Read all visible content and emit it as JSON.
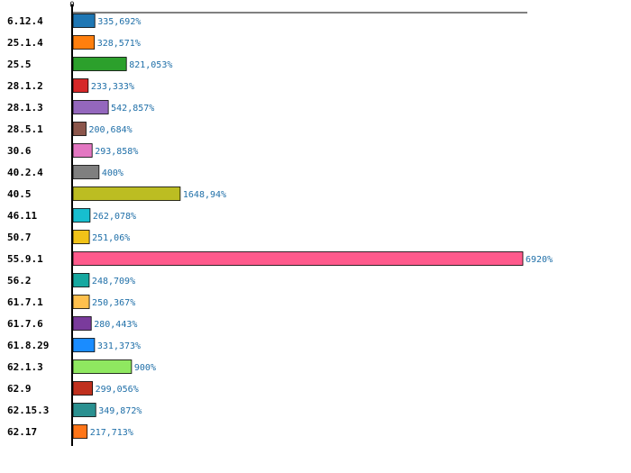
{
  "chart_data": {
    "type": "bar",
    "orientation": "horizontal",
    "title": "",
    "xlabel": "",
    "ylabel": "",
    "xlim": [
      0,
      7000
    ],
    "x_ticks": [
      "0"
    ],
    "grid": false,
    "legend": "none",
    "categories": [
      "6.12.4",
      "25.1.4",
      "25.5",
      "28.1.2",
      "28.1.3",
      "28.5.1",
      "30.6",
      "40.2.4",
      "40.5",
      "46.11",
      "50.7",
      "55.9.1",
      "56.2",
      "61.7.1",
      "61.7.6",
      "61.8.29",
      "62.1.3",
      "62.9",
      "62.15.3",
      "62.17"
    ],
    "values": [
      335.692,
      328.571,
      821.053,
      233.333,
      542.857,
      200.684,
      293.858,
      400,
      1648.94,
      262.078,
      251.06,
      6920,
      248.709,
      250.367,
      280.443,
      331.373,
      900,
      299.056,
      349.872,
      217.713
    ],
    "value_labels": [
      "335,692%",
      "328,571%",
      "821,053%",
      "233,333%",
      "542,857%",
      "200,684%",
      "293,858%",
      "400%",
      "1648,94%",
      "262,078%",
      "251,06%",
      "6920%",
      "248,709%",
      "250,367%",
      "280,443%",
      "331,373%",
      "900%",
      "299,056%",
      "349,872%",
      "217,713%"
    ],
    "colors": [
      "#1f77b4",
      "#ff7f0e",
      "#2ca02c",
      "#d62728",
      "#9467bd",
      "#8c564b",
      "#e377c2",
      "#7f7f7f",
      "#bcbd22",
      "#17becf",
      "#f2c318",
      "#ff5a8c",
      "#17a8a0",
      "#ffc04d",
      "#7a3b9c",
      "#1a8cff",
      "#8fe860",
      "#c0301e",
      "#2a9090",
      "#ff7518"
    ]
  }
}
